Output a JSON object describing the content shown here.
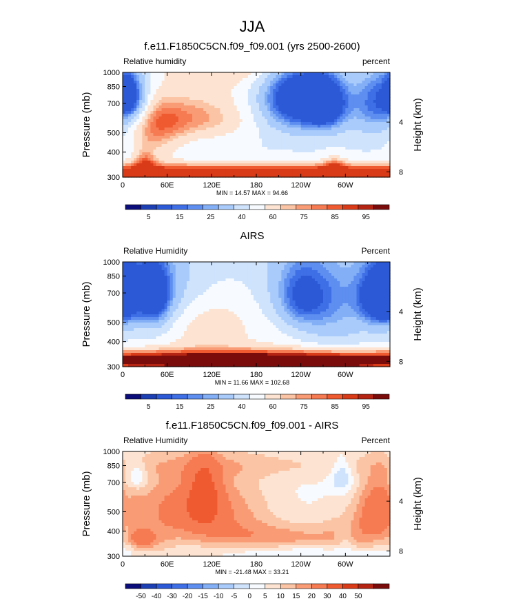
{
  "figure_title": "JJA",
  "chart_data": [
    {
      "type": "heatmap",
      "title": "f.e11.F1850C5CN.f09_f09.001 (yrs 2500-2600)",
      "field_label": "Relative humidity",
      "units_label": "percent",
      "ylabel": "Pressure (mb)",
      "y2label": "Height (km)",
      "x_ticks": [
        "0",
        "60E",
        "120E",
        "180",
        "120W",
        "60W"
      ],
      "y_ticks": [
        "300",
        "400",
        "500",
        "700",
        "850",
        "1000"
      ],
      "y2_ticks": [
        "8",
        "4"
      ],
      "stats": "MIN =  14.57  MAX =  94.66",
      "min": 14.57,
      "max": 94.66,
      "xlim": [
        0,
        360
      ],
      "ylim": [
        1000,
        300
      ],
      "y_scale": "log",
      "colorbar": {
        "labels": [
          "5",
          "15",
          "25",
          "40",
          "60",
          "75",
          "85",
          "95"
        ],
        "levels": [
          0,
          5,
          10,
          15,
          20,
          25,
          30,
          40,
          50,
          60,
          70,
          75,
          80,
          85,
          90,
          95,
          100
        ],
        "colors": [
          "#0b0e7a",
          "#1d3fb4",
          "#2c5ad6",
          "#3f6fe6",
          "#5d8ef0",
          "#83aff6",
          "#a9cbfb",
          "#cfe3fd",
          "#f7fbff",
          "#fde4d2",
          "#fbc4a4",
          "#f99c75",
          "#f67a52",
          "#ef5a30",
          "#d93a18",
          "#b52412",
          "#7a0c0c"
        ]
      },
      "terrain": [
        [
          10,
          20,
          1000,
          945
        ],
        [
          20,
          30,
          1000,
          945
        ],
        [
          30,
          35,
          1000,
          885
        ],
        [
          35,
          40,
          1000,
          945
        ],
        [
          97,
          99,
          1000,
          945
        ],
        [
          278,
          300,
          1000,
          945
        ]
      ],
      "features": [
        [
          90,
          500,
          60,
          100,
          30
        ],
        [
          100,
          130,
          45,
          100,
          22
        ],
        [
          150,
          130,
          55,
          100,
          24
        ],
        [
          195,
          150,
          90,
          120,
          38
        ],
        [
          235,
          390,
          35,
          120,
          -55
        ],
        [
          275,
          430,
          20,
          100,
          -35
        ],
        [
          345,
          430,
          25,
          120,
          -35
        ],
        [
          15,
          410,
          15,
          80,
          -30
        ],
        [
          45,
          600,
          25,
          150,
          20
        ],
        [
          5,
          380,
          8,
          60,
          -20
        ],
        [
          180,
          960,
          400,
          70,
          55
        ],
        [
          30,
          900,
          10,
          120,
          30
        ],
        [
          285,
          940,
          10,
          100,
          30
        ]
      ]
    },
    {
      "type": "heatmap",
      "title": "AIRS",
      "field_label": "Relative Humidity",
      "units_label": "Percent",
      "ylabel": "Pressure (mb)",
      "y2label": "Height (km)",
      "x_ticks": [
        "0",
        "60E",
        "120E",
        "180",
        "120W",
        "60W"
      ],
      "y_ticks": [
        "300",
        "400",
        "500",
        "700",
        "850",
        "1000"
      ],
      "y2_ticks": [
        "8",
        "4"
      ],
      "stats": "MIN =  11.66  MAX =  102.68",
      "min": 11.66,
      "max": 102.68,
      "xlim": [
        0,
        360
      ],
      "ylim": [
        1000,
        300
      ],
      "y_scale": "log",
      "colorbar": {
        "labels": [
          "5",
          "15",
          "25",
          "40",
          "60",
          "75",
          "85",
          "95"
        ],
        "levels": [
          0,
          5,
          10,
          15,
          20,
          25,
          30,
          40,
          50,
          60,
          70,
          75,
          80,
          85,
          90,
          95,
          100
        ],
        "colors": [
          "#0b0e7a",
          "#1d3fb4",
          "#2c5ad6",
          "#3f6fe6",
          "#5d8ef0",
          "#83aff6",
          "#a9cbfb",
          "#cfe3fd",
          "#f7fbff",
          "#fde4d2",
          "#fbc4a4",
          "#f99c75",
          "#f67a52",
          "#ef5a30",
          "#d93a18",
          "#b52412",
          "#7a0c0c"
        ]
      },
      "terrain": [
        [
          27,
          37,
          1000,
          945
        ]
      ],
      "features": [
        [
          30,
          400,
          50,
          130,
          -25
        ],
        [
          45,
          460,
          15,
          120,
          -30
        ],
        [
          245,
          440,
          35,
          150,
          -30
        ],
        [
          240,
          460,
          20,
          100,
          -10
        ],
        [
          350,
          460,
          20,
          100,
          -40
        ],
        [
          355,
          430,
          25,
          150,
          -10
        ],
        [
          170,
          600,
          60,
          200,
          10
        ],
        [
          85,
          600,
          30,
          200,
          8
        ],
        [
          125,
          620,
          25,
          150,
          7
        ],
        [
          290,
          600,
          30,
          200,
          -10
        ],
        [
          160,
          940,
          300,
          60,
          60
        ],
        [
          150,
          950,
          40,
          40,
          20
        ],
        [
          280,
          950,
          30,
          40,
          20
        ],
        [
          180,
          860,
          300,
          60,
          15
        ]
      ]
    },
    {
      "type": "heatmap",
      "title": "f.e11.F1850C5CN.f09_f09.001 - AIRS",
      "field_label": "Relative Humidity",
      "units_label": "Percent",
      "ylabel": "Pressure (mb)",
      "y2label": "Height (km)",
      "x_ticks": [
        "0",
        "60E",
        "120E",
        "180",
        "120W",
        "60W"
      ],
      "y_ticks": [
        "300",
        "400",
        "500",
        "700",
        "850",
        "1000"
      ],
      "y2_ticks": [
        "8",
        "4"
      ],
      "stats": "MIN = -21.48  MAX = 33.21",
      "min": -21.48,
      "max": 33.21,
      "xlim": [
        0,
        360
      ],
      "ylim": [
        1000,
        300
      ],
      "y_scale": "log",
      "colorbar": {
        "labels": [
          "-50",
          "-40",
          "-30",
          "-20",
          "-15",
          "-10",
          "-5",
          "0",
          "5",
          "10",
          "15",
          "20",
          "30",
          "40",
          "50"
        ],
        "levels": [
          -60,
          -50,
          -40,
          -30,
          -20,
          -15,
          -10,
          -5,
          0,
          5,
          10,
          15,
          20,
          30,
          40,
          50,
          60
        ],
        "colors": [
          "#0b0e7a",
          "#1d3fb4",
          "#2c5ad6",
          "#3f6fe6",
          "#5d8ef0",
          "#83aff6",
          "#a9cbfb",
          "#cfe3fd",
          "#f7fbff",
          "#fde4d2",
          "#fbc4a4",
          "#f99c75",
          "#f67a52",
          "#ef5a30",
          "#d93a18",
          "#b52412",
          "#7a0c0c"
        ]
      },
      "terrain": [
        [
          10,
          20,
          1000,
          945
        ],
        [
          20,
          30,
          1000,
          945
        ],
        [
          27,
          35,
          1000,
          885
        ],
        [
          35,
          42,
          1000,
          945
        ],
        [
          100,
          103,
          1000,
          945
        ],
        [
          285,
          312,
          1000,
          945
        ]
      ],
      "features": [
        [
          75,
          580,
          45,
          170,
          18
        ],
        [
          110,
          500,
          15,
          130,
          22
        ],
        [
          20,
          400,
          9,
          40,
          -12
        ],
        [
          295,
          400,
          10,
          50,
          -12
        ],
        [
          345,
          580,
          20,
          150,
          20
        ],
        [
          210,
          800,
          70,
          90,
          12
        ],
        [
          150,
          600,
          40,
          180,
          10
        ],
        [
          25,
          820,
          12,
          60,
          15
        ],
        [
          180,
          350,
          200,
          40,
          6
        ],
        [
          310,
          750,
          30,
          150,
          8
        ],
        [
          5,
          600,
          6,
          250,
          -5
        ],
        [
          300,
          830,
          8,
          100,
          -6
        ],
        [
          250,
          950,
          80,
          40,
          -5
        ],
        [
          40,
          870,
          20,
          120,
          6
        ]
      ]
    }
  ]
}
